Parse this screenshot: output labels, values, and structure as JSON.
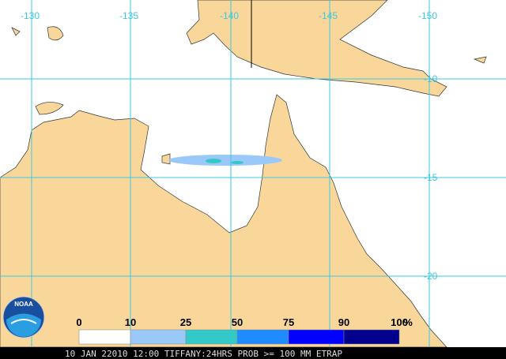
{
  "map": {
    "longitude_labels": [
      "-130",
      "-135",
      "-140",
      "-145",
      "-150"
    ],
    "latitude_labels": [
      "-10",
      "-15",
      "-20"
    ],
    "logo": "NOAA",
    "legend": {
      "ticks": [
        "0",
        "10",
        "25",
        "50",
        "75",
        "90",
        "100"
      ],
      "unit": "%",
      "colors": [
        "#ffffff",
        "#9ac8f8",
        "#33c9c9",
        "#1e8cff",
        "#0000ff",
        "#00008c"
      ]
    },
    "caption": "10 JAN 22010 12:00 TIFFANY:24HRS PROB >= 100 MM ETRAP"
  }
}
